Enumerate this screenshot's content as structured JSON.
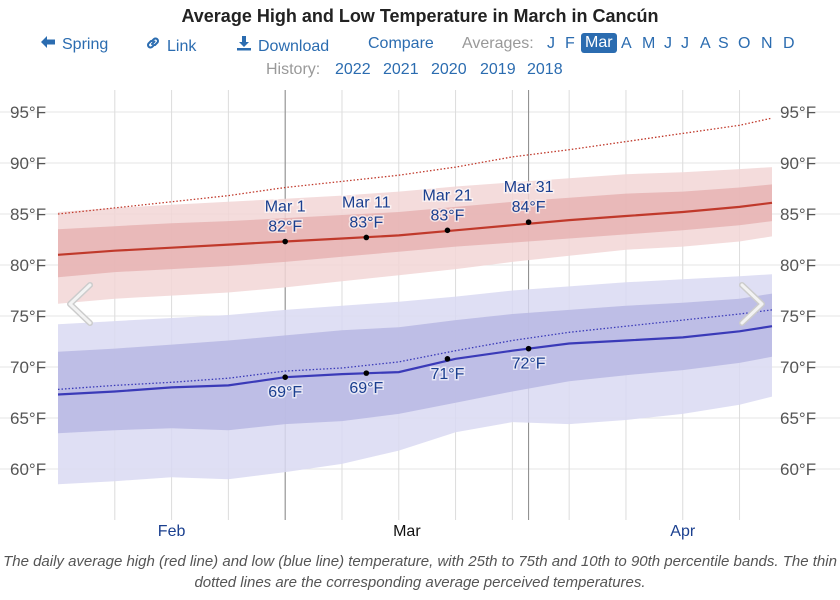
{
  "header": {
    "title": "Average High and Low Temperature in March in Cancún"
  },
  "nav": {
    "back": {
      "icon": "arrow-left-icon",
      "label": "Spring"
    },
    "link": {
      "icon": "link-icon",
      "label": "Link"
    },
    "download": {
      "icon": "download-icon",
      "label": "Download"
    },
    "compare": {
      "label": "Compare"
    },
    "averages_label": "Averages:",
    "months": [
      "J",
      "F",
      "Mar",
      "A",
      "M",
      "J",
      "J",
      "A",
      "S",
      "O",
      "N",
      "D"
    ],
    "active_month": "Mar"
  },
  "history": {
    "label": "History:",
    "years": [
      "2022",
      "2021",
      "2020",
      "2019",
      "2018"
    ]
  },
  "navigation_arrows": {
    "prev": "chevron-left-icon",
    "next": "chevron-right-icon"
  },
  "colors": {
    "high_line": "#c0392b",
    "high_band_inner": "#e6b3b3",
    "high_band_outer": "#f2d6d6",
    "low_line": "#3a3ab8",
    "low_band_inner": "#b9b9e3",
    "low_band_outer": "#d9d9f2",
    "link": "#2b6cb0",
    "annotation": "#1a3f8f"
  },
  "chart_data": {
    "type": "area",
    "title": "Average High and Low Temperature in March in Cancún",
    "xlabel": "",
    "ylabel": "",
    "ylim": [
      56,
      97
    ],
    "yticks": [
      60,
      65,
      70,
      75,
      80,
      85,
      90,
      95
    ],
    "ytick_labels": [
      "60°F",
      "65°F",
      "70°F",
      "75°F",
      "80°F",
      "85°F",
      "90°F",
      "95°F"
    ],
    "x_range_days": [
      -28,
      60
    ],
    "x_unit": "days from Mar 1",
    "month_labels": [
      {
        "label": "Feb",
        "day": -14,
        "highlight": false
      },
      {
        "label": "Mar",
        "day": 15,
        "highlight": true
      },
      {
        "label": "Apr",
        "day": 49,
        "highlight": false
      }
    ],
    "grid": true,
    "marked_days": [
      0,
      30
    ],
    "x": [
      -28,
      -21,
      -14,
      -7,
      0,
      7,
      14,
      21,
      28,
      35,
      42,
      49,
      56,
      60
    ],
    "series": [
      {
        "name": "Average high",
        "values": [
          81.0,
          81.4,
          81.7,
          82.0,
          82.3,
          82.6,
          82.9,
          83.4,
          83.9,
          84.4,
          84.8,
          85.2,
          85.7,
          86.1
        ]
      },
      {
        "name": "High 25th percentile",
        "values": [
          78.8,
          79.3,
          79.6,
          79.9,
          80.3,
          80.8,
          81.3,
          81.8,
          82.2,
          82.6,
          83.0,
          83.4,
          83.9,
          84.3
        ]
      },
      {
        "name": "High 75th percentile",
        "values": [
          83.5,
          83.8,
          84.1,
          84.3,
          84.6,
          84.9,
          85.2,
          85.7,
          86.2,
          86.6,
          87.0,
          87.2,
          87.6,
          87.9
        ]
      },
      {
        "name": "High 10th percentile",
        "values": [
          76.2,
          76.7,
          77.0,
          77.3,
          77.8,
          78.4,
          79.0,
          79.6,
          80.3,
          80.9,
          81.5,
          81.8,
          82.3,
          82.8
        ]
      },
      {
        "name": "High 90th percentile",
        "values": [
          85.2,
          85.6,
          85.9,
          86.2,
          86.5,
          86.8,
          87.2,
          87.7,
          88.1,
          88.5,
          88.9,
          89.1,
          89.4,
          89.6
        ]
      },
      {
        "name": "Perceived high",
        "values": [
          85.0,
          85.6,
          86.2,
          86.8,
          87.6,
          88.2,
          88.8,
          89.6,
          90.6,
          91.3,
          92.1,
          92.9,
          93.7,
          94.4
        ]
      },
      {
        "name": "Average low",
        "values": [
          67.3,
          67.6,
          68.0,
          68.2,
          69.0,
          69.3,
          69.5,
          70.8,
          71.6,
          72.3,
          72.6,
          72.9,
          73.5,
          74.0
        ]
      },
      {
        "name": "Low 25th percentile",
        "values": [
          63.5,
          63.8,
          64.0,
          63.8,
          64.4,
          64.7,
          65.4,
          66.5,
          67.6,
          68.6,
          69.2,
          69.7,
          70.4,
          71.0
        ]
      },
      {
        "name": "Low 75th percentile",
        "values": [
          71.5,
          71.8,
          72.2,
          72.6,
          73.1,
          73.6,
          73.9,
          74.6,
          75.2,
          75.6,
          76.0,
          76.3,
          76.7,
          77.2
        ]
      },
      {
        "name": "Low 10th percentile",
        "values": [
          58.5,
          58.8,
          59.2,
          59.0,
          59.7,
          60.5,
          61.8,
          63.6,
          64.6,
          64.4,
          64.8,
          65.4,
          66.3,
          67.1
        ]
      },
      {
        "name": "Low 90th percentile",
        "values": [
          74.2,
          74.5,
          74.8,
          75.1,
          75.6,
          76.0,
          76.4,
          76.9,
          77.5,
          77.9,
          78.3,
          78.6,
          78.9,
          79.1
        ]
      },
      {
        "name": "Perceived low",
        "values": [
          67.8,
          68.2,
          68.5,
          68.9,
          69.6,
          69.9,
          70.5,
          71.6,
          72.6,
          73.4,
          74.0,
          74.6,
          75.2,
          75.6
        ]
      }
    ],
    "annotations": [
      {
        "date": "Mar 1",
        "day": 0,
        "high": "82°F",
        "high_value": 82.3,
        "low": "69°F",
        "low_value": 69.0
      },
      {
        "date": "Mar 11",
        "day": 10,
        "high": "83°F",
        "high_value": 82.7,
        "low": "69°F",
        "low_value": 69.4
      },
      {
        "date": "Mar 21",
        "day": 20,
        "high": "83°F",
        "high_value": 83.4,
        "low": "71°F",
        "low_value": 70.8
      },
      {
        "date": "Mar 31",
        "day": 30,
        "high": "84°F",
        "high_value": 84.2,
        "low": "72°F",
        "low_value": 71.8
      }
    ],
    "caption": "The daily average high (red line) and low (blue line) temperature, with 25th to 75th and 10th to 90th percentile bands. The thin dotted lines are the corresponding average perceived temperatures."
  }
}
